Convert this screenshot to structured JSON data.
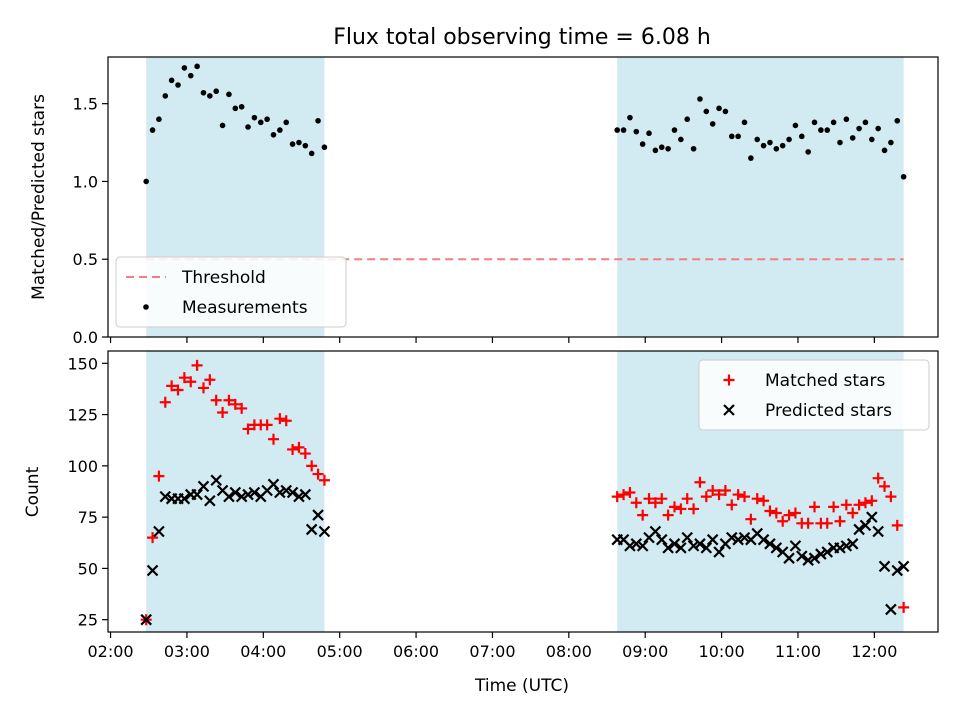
{
  "figure": {
    "title": "Flux total observing time = 6.08 h"
  },
  "chart_data": [
    {
      "type": "scatter",
      "title": "Flux total observing time = 6.08 h",
      "xlabel": "",
      "ylabel": "Matched/Predicted stars",
      "xlim": [
        "01:58",
        "12:50"
      ],
      "ylim": [
        0,
        1.8
      ],
      "yticks": [
        0.0,
        0.5,
        1.0,
        1.5
      ],
      "ytick_labels": [
        "0.0",
        "0.5",
        "1.0",
        "1.5"
      ],
      "grid": false,
      "legend_position": "lower-left",
      "shaded_intervals": [
        [
          "02:28",
          "04:48"
        ],
        [
          "08:38",
          "12:23"
        ]
      ],
      "shade_color": "#add8e6",
      "threshold": {
        "name": "Threshold",
        "value": 0.5,
        "color": "#f08080",
        "style": "dashed",
        "x": [
          "02:28",
          "12:23"
        ]
      },
      "series": [
        {
          "name": "Measurements",
          "color": "#000000",
          "marker": "dot",
          "x": [
            "02:28",
            "02:33",
            "02:38",
            "02:43",
            "02:48",
            "02:53",
            "02:58",
            "03:03",
            "03:08",
            "03:13",
            "03:18",
            "03:23",
            "03:28",
            "03:33",
            "03:38",
            "03:43",
            "03:48",
            "03:53",
            "03:58",
            "04:03",
            "04:08",
            "04:13",
            "04:18",
            "04:23",
            "04:28",
            "04:33",
            "04:38",
            "04:43",
            "04:48",
            "08:38",
            "08:43",
            "08:48",
            "08:53",
            "08:58",
            "09:03",
            "09:08",
            "09:13",
            "09:18",
            "09:23",
            "09:28",
            "09:33",
            "09:38",
            "09:43",
            "09:48",
            "09:53",
            "09:58",
            "10:03",
            "10:08",
            "10:13",
            "10:18",
            "10:23",
            "10:28",
            "10:33",
            "10:38",
            "10:43",
            "10:48",
            "10:53",
            "10:58",
            "11:03",
            "11:08",
            "11:13",
            "11:18",
            "11:23",
            "11:28",
            "11:33",
            "11:38",
            "11:43",
            "11:48",
            "11:53",
            "11:58",
            "12:03",
            "12:08",
            "12:13",
            "12:18",
            "12:23"
          ],
          "y": [
            1.0,
            1.33,
            1.4,
            1.55,
            1.65,
            1.62,
            1.73,
            1.68,
            1.74,
            1.57,
            1.55,
            1.58,
            1.36,
            1.56,
            1.47,
            1.48,
            1.35,
            1.41,
            1.38,
            1.4,
            1.3,
            1.33,
            1.38,
            1.24,
            1.25,
            1.23,
            1.18,
            1.39,
            1.22,
            1.33,
            1.33,
            1.41,
            1.32,
            1.24,
            1.31,
            1.2,
            1.22,
            1.21,
            1.33,
            1.27,
            1.4,
            1.21,
            1.53,
            1.45,
            1.37,
            1.47,
            1.45,
            1.29,
            1.29,
            1.38,
            1.15,
            1.27,
            1.23,
            1.25,
            1.21,
            1.23,
            1.27,
            1.36,
            1.29,
            1.19,
            1.38,
            1.33,
            1.33,
            1.38,
            1.25,
            1.4,
            1.28,
            1.34,
            1.38,
            1.27,
            1.34,
            1.2,
            1.25,
            1.39,
            1.03
          ]
        }
      ]
    },
    {
      "type": "scatter",
      "title": "",
      "xlabel": "Time (UTC)",
      "ylabel": "Count",
      "xlim": [
        "01:58",
        "12:50"
      ],
      "ylim": [
        19,
        156
      ],
      "xticks": [
        "02:00",
        "03:00",
        "04:00",
        "05:00",
        "06:00",
        "07:00",
        "08:00",
        "09:00",
        "10:00",
        "11:00",
        "12:00"
      ],
      "yticks": [
        25,
        50,
        75,
        100,
        125,
        150
      ],
      "ytick_labels": [
        "25",
        "50",
        "75",
        "100",
        "125",
        "150"
      ],
      "grid": false,
      "legend_position": "upper-right",
      "shaded_intervals": [
        [
          "02:28",
          "04:48"
        ],
        [
          "08:38",
          "12:23"
        ]
      ],
      "shade_color": "#add8e6",
      "series": [
        {
          "name": "Matched stars",
          "color": "#ff0000",
          "marker": "plus",
          "x": [
            "02:28",
            "02:33",
            "02:38",
            "02:43",
            "02:48",
            "02:53",
            "02:58",
            "03:03",
            "03:08",
            "03:13",
            "03:18",
            "03:23",
            "03:28",
            "03:33",
            "03:38",
            "03:43",
            "03:48",
            "03:53",
            "03:58",
            "04:03",
            "04:08",
            "04:13",
            "04:18",
            "04:23",
            "04:28",
            "04:33",
            "04:38",
            "04:43",
            "04:48",
            "08:38",
            "08:43",
            "08:48",
            "08:53",
            "08:58",
            "09:03",
            "09:08",
            "09:13",
            "09:18",
            "09:23",
            "09:28",
            "09:33",
            "09:38",
            "09:43",
            "09:48",
            "09:53",
            "09:58",
            "10:03",
            "10:08",
            "10:13",
            "10:18",
            "10:23",
            "10:28",
            "10:33",
            "10:38",
            "10:43",
            "10:48",
            "10:53",
            "10:58",
            "11:03",
            "11:08",
            "11:13",
            "11:18",
            "11:23",
            "11:28",
            "11:33",
            "11:38",
            "11:43",
            "11:48",
            "11:53",
            "11:58",
            "12:03",
            "12:08",
            "12:13",
            "12:18",
            "12:23"
          ],
          "y": [
            25,
            65,
            95,
            131,
            139,
            137,
            143,
            141,
            149,
            138,
            142,
            132,
            126,
            132,
            130,
            128,
            118,
            120,
            120,
            120,
            113,
            123,
            122,
            108,
            109,
            106,
            100,
            96,
            93,
            85,
            86,
            87,
            82,
            76,
            84,
            82,
            84,
            76,
            80,
            79,
            84,
            79,
            92,
            85,
            88,
            86,
            88,
            81,
            86,
            85,
            74,
            84,
            83,
            78,
            77,
            73,
            76,
            77,
            72,
            72,
            80,
            72,
            72,
            80,
            73,
            81,
            77,
            81,
            82,
            83,
            94,
            90,
            85,
            71,
            31
          ]
        },
        {
          "name": "Predicted stars",
          "color": "#000000",
          "marker": "x",
          "x": [
            "02:28",
            "02:33",
            "02:38",
            "02:43",
            "02:48",
            "02:53",
            "02:58",
            "03:03",
            "03:08",
            "03:13",
            "03:18",
            "03:23",
            "03:28",
            "03:33",
            "03:38",
            "03:43",
            "03:48",
            "03:53",
            "03:58",
            "04:03",
            "04:08",
            "04:13",
            "04:18",
            "04:23",
            "04:28",
            "04:33",
            "04:38",
            "04:43",
            "04:48",
            "08:38",
            "08:43",
            "08:48",
            "08:53",
            "08:58",
            "09:03",
            "09:08",
            "09:13",
            "09:18",
            "09:23",
            "09:28",
            "09:33",
            "09:38",
            "09:43",
            "09:48",
            "09:53",
            "09:58",
            "10:03",
            "10:08",
            "10:13",
            "10:18",
            "10:23",
            "10:28",
            "10:33",
            "10:38",
            "10:43",
            "10:48",
            "10:53",
            "10:58",
            "11:03",
            "11:08",
            "11:13",
            "11:18",
            "11:23",
            "11:28",
            "11:33",
            "11:38",
            "11:43",
            "11:48",
            "11:53",
            "11:58",
            "12:03",
            "12:08",
            "12:13",
            "12:18",
            "12:23"
          ],
          "y": [
            25,
            49,
            68,
            85,
            84,
            84,
            84,
            86,
            86,
            90,
            83,
            93,
            88,
            85,
            87,
            85,
            86,
            87,
            85,
            88,
            91,
            87,
            88,
            87,
            85,
            86,
            69,
            76,
            68,
            64,
            64,
            61,
            62,
            61,
            65,
            68,
            64,
            60,
            62,
            60,
            65,
            61,
            62,
            60,
            64,
            58,
            62,
            65,
            64,
            65,
            64,
            67,
            64,
            62,
            60,
            58,
            55,
            61,
            56,
            54,
            55,
            57,
            58,
            60,
            60,
            61,
            62,
            69,
            71,
            75,
            68,
            51,
            30,
            49,
            51
          ]
        }
      ]
    }
  ]
}
